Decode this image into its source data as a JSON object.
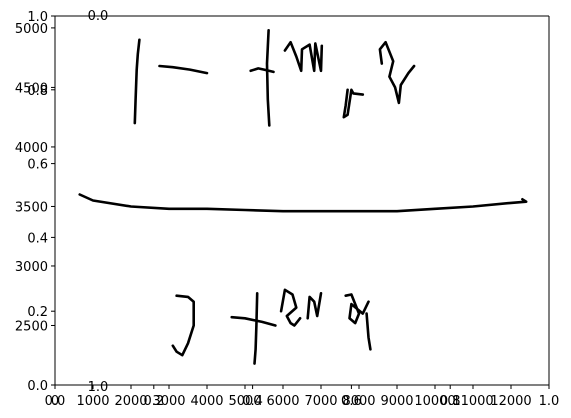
{
  "chart_data": [
    {
      "type": "line",
      "role": "primary-axes",
      "title": "",
      "xlabel": "",
      "ylabel": "",
      "xlim": [
        0,
        1
      ],
      "ylim": [
        0,
        1
      ],
      "x_ticks": [
        {
          "value": 0.0,
          "label": "0.0"
        },
        {
          "value": 0.2,
          "label": "0.2"
        },
        {
          "value": 0.4,
          "label": "0.4"
        },
        {
          "value": 0.6,
          "label": "0.6"
        },
        {
          "value": 0.8,
          "label": "0.8"
        },
        {
          "value": 1.0,
          "label": "1.0"
        }
      ],
      "y_ticks": [
        {
          "value": 0.0,
          "label": "0.0"
        },
        {
          "value": 0.2,
          "label": "0.2"
        },
        {
          "value": 0.4,
          "label": "0.4"
        },
        {
          "value": 0.6,
          "label": "0.6"
        },
        {
          "value": 0.8,
          "label": "0.8"
        },
        {
          "value": 1.0,
          "label": "1.0"
        }
      ],
      "grid": false
    },
    {
      "type": "line",
      "role": "handwriting-axes",
      "xlim": [
        0,
        13000
      ],
      "ylim": [
        2000,
        5100
      ],
      "x_ticks": [
        {
          "value": 0,
          "label": "0"
        },
        {
          "value": 1000,
          "label": "1000"
        },
        {
          "value": 2000,
          "label": "2000"
        },
        {
          "value": 3000,
          "label": "3000"
        },
        {
          "value": 4000,
          "label": "4000"
        },
        {
          "value": 5000,
          "label": "5000"
        },
        {
          "value": 6000,
          "label": "6000"
        },
        {
          "value": 7000,
          "label": "7000"
        },
        {
          "value": 8000,
          "label": "8000"
        },
        {
          "value": 9000,
          "label": "9000"
        },
        {
          "value": 10000,
          "label": "10000"
        },
        {
          "value": 11000,
          "label": "11000"
        },
        {
          "value": 12000,
          "label": "12000"
        }
      ],
      "y_ticks": [
        {
          "value": 2500,
          "label": "2500"
        },
        {
          "value": 3000,
          "label": "3000"
        },
        {
          "value": 3500,
          "label": "3500"
        },
        {
          "value": 4000,
          "label": "4000"
        },
        {
          "value": 4500,
          "label": "4500"
        },
        {
          "value": 5000,
          "label": "5000"
        }
      ],
      "grid": false,
      "series": [
        {
          "values": [
            [
              2100,
              4200
            ],
            [
              2120,
              4400
            ],
            [
              2150,
              4650
            ],
            [
              2180,
              4780
            ],
            [
              2220,
              4900
            ]
          ]
        },
        {
          "values": [
            [
              2750,
              4680
            ],
            [
              3100,
              4670
            ],
            [
              3550,
              4650
            ],
            [
              4000,
              4620
            ]
          ]
        },
        {
          "values": [
            [
              5150,
              4640
            ],
            [
              5350,
              4660
            ],
            [
              5500,
              4650
            ],
            [
              5750,
              4630
            ]
          ]
        },
        {
          "values": [
            [
              5620,
              4980
            ],
            [
              5580,
              4700
            ],
            [
              5600,
              4400
            ],
            [
              5640,
              4180
            ]
          ]
        },
        {
          "values": [
            [
              6050,
              4810
            ],
            [
              6200,
              4880
            ],
            [
              6350,
              4760
            ],
            [
              6480,
              4640
            ],
            [
              6500,
              4820
            ],
            [
              6700,
              4860
            ],
            [
              6820,
              4640
            ],
            [
              6850,
              4870
            ],
            [
              7000,
              4640
            ],
            [
              7020,
              4850
            ]
          ]
        },
        {
          "values": [
            [
              7700,
              4480
            ],
            [
              7650,
              4350
            ],
            [
              7600,
              4250
            ],
            [
              7700,
              4270
            ],
            [
              7800,
              4480
            ],
            [
              7850,
              4450
            ],
            [
              8100,
              4440
            ]
          ]
        },
        {
          "values": [
            [
              8600,
              4700
            ],
            [
              8550,
              4820
            ],
            [
              8700,
              4880
            ],
            [
              8900,
              4720
            ],
            [
              8800,
              4590
            ],
            [
              8950,
              4500
            ],
            [
              9050,
              4370
            ],
            [
              9100,
              4520
            ],
            [
              9300,
              4620
            ],
            [
              9450,
              4680
            ]
          ]
        },
        {
          "values": [
            [
              650,
              3600
            ],
            [
              1000,
              3550
            ],
            [
              2000,
              3500
            ],
            [
              3000,
              3480
            ],
            [
              4000,
              3480
            ],
            [
              5000,
              3470
            ],
            [
              6000,
              3460
            ],
            [
              7000,
              3460
            ],
            [
              8000,
              3460
            ],
            [
              9000,
              3460
            ],
            [
              10000,
              3480
            ],
            [
              11000,
              3500
            ],
            [
              12000,
              3530
            ],
            [
              12400,
              3540
            ],
            [
              12300,
              3560
            ]
          ]
        },
        {
          "values": [
            [
              3200,
              2750
            ],
            [
              3500,
              2740
            ],
            [
              3650,
              2700
            ],
            [
              3650,
              2500
            ],
            [
              3500,
              2350
            ],
            [
              3350,
              2250
            ],
            [
              3200,
              2280
            ],
            [
              3100,
              2330
            ]
          ]
        },
        {
          "values": [
            [
              4650,
              2570
            ],
            [
              5000,
              2560
            ],
            [
              5450,
              2530
            ],
            [
              5800,
              2500
            ]
          ]
        },
        {
          "values": [
            [
              5320,
              2770
            ],
            [
              5300,
              2500
            ],
            [
              5280,
              2300
            ],
            [
              5250,
              2180
            ]
          ]
        },
        {
          "values": [
            [
              5950,
              2620
            ],
            [
              6050,
              2800
            ],
            [
              6250,
              2760
            ],
            [
              6350,
              2650
            ],
            [
              6100,
              2580
            ],
            [
              6200,
              2520
            ],
            [
              6300,
              2500
            ],
            [
              6450,
              2560
            ]
          ]
        },
        {
          "values": [
            [
              6650,
              2560
            ],
            [
              6700,
              2740
            ],
            [
              6820,
              2700
            ],
            [
              6900,
              2580
            ],
            [
              7000,
              2770
            ]
          ]
        },
        {
          "values": [
            [
              7650,
              2750
            ],
            [
              7800,
              2760
            ],
            [
              8000,
              2600
            ],
            [
              7900,
              2520
            ],
            [
              7750,
              2560
            ],
            [
              7800,
              2680
            ],
            [
              8100,
              2600
            ],
            [
              8250,
              2700
            ]
          ]
        },
        {
          "values": [
            [
              8200,
              2600
            ],
            [
              8250,
              2400
            ],
            [
              8300,
              2300
            ]
          ]
        }
      ]
    }
  ]
}
